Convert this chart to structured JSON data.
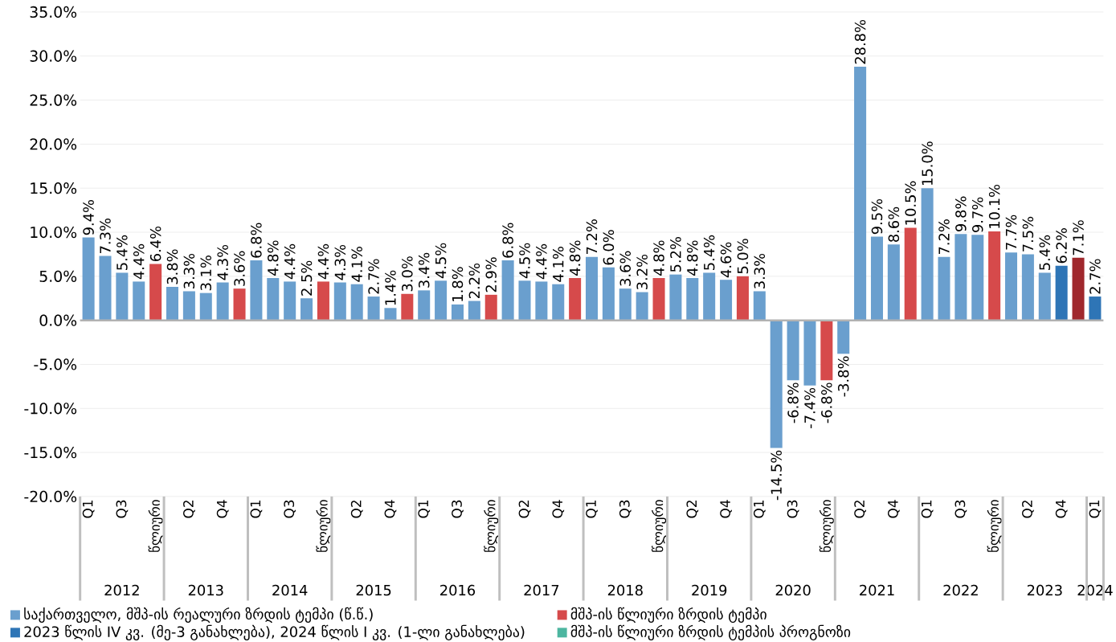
{
  "chart_data": {
    "type": "bar",
    "categories": [
      "Q1",
      null,
      "Q3",
      null,
      "წლიური",
      null,
      "Q2",
      null,
      "Q4",
      null,
      "Q1",
      null,
      "Q3",
      null,
      "წლიური",
      null,
      "Q2",
      null,
      "Q4",
      null,
      "Q1",
      null,
      "Q3",
      null,
      "წლიური",
      null,
      "Q2",
      null,
      "Q4",
      null,
      "Q1",
      null,
      "Q3",
      null,
      "წლიური",
      null,
      "Q2",
      null,
      "Q4",
      null,
      "Q1",
      null,
      "Q3",
      null,
      "წლიური",
      null,
      "Q2",
      null,
      "Q4",
      null,
      "Q1",
      null,
      "Q3",
      null,
      "წლიური",
      null,
      "Q2",
      null,
      "Q4",
      null,
      "Q1"
    ],
    "annotations": [
      "2012",
      "2013",
      "2014",
      "2015",
      "2016",
      "2017",
      "2018",
      "2019",
      "2020",
      "2021",
      "2022",
      "2023",
      "2024"
    ],
    "series": [
      {
        "name": "საქართველო, მშპ-ის რეალური ზრდის ტემპი (წ.წ.)",
        "color": "#6a9fce",
        "values": [
          9.4,
          7.3,
          5.4,
          4.4,
          null,
          3.8,
          3.3,
          3.1,
          4.3,
          null,
          6.8,
          4.8,
          4.4,
          2.5,
          null,
          4.3,
          4.1,
          2.7,
          1.4,
          null,
          3.4,
          4.5,
          1.8,
          2.2,
          null,
          6.8,
          4.5,
          4.4,
          4.1,
          null,
          7.2,
          6.0,
          3.6,
          3.2,
          null,
          5.2,
          4.8,
          5.4,
          4.6,
          null,
          3.3,
          -14.5,
          -6.8,
          -7.4,
          null,
          -3.8,
          28.8,
          9.5,
          8.6,
          null,
          15.0,
          7.2,
          9.8,
          9.7,
          null,
          7.7,
          7.5,
          5.4,
          null,
          null,
          null
        ],
        "value_labels": [
          "9.4%",
          "7.3%",
          "5.4%",
          "4.4%",
          null,
          "3.8%",
          "3.3%",
          "3.1%",
          "4.3%",
          null,
          "6.8%",
          "4.8%",
          "4.4%",
          "2.5%",
          null,
          "4.3%",
          "4.1%",
          "2.7%",
          "1.4%",
          null,
          "3.4%",
          "4.5%",
          "1.8%",
          "2.2%",
          null,
          "6.8%",
          "4.5%",
          "4.4%",
          "4.1%",
          null,
          "7.2%",
          "6.0%",
          "3.6%",
          "3.2%",
          null,
          "5.2%",
          "4.8%",
          "5.4%",
          "4.6%",
          null,
          "3.3%",
          "-14.5%",
          "-6.8%",
          "-7.4%",
          null,
          "-3.8%",
          "28.8%",
          "9.5%",
          "8.6%",
          null,
          "15.0%",
          "7.2%",
          "9.8%",
          "9.7%",
          null,
          "7.7%",
          "7.5%",
          "5.4%",
          null,
          null,
          null
        ]
      },
      {
        "name": "მშპ-ის წლიური ზრდის ტემპი",
        "color": "#d64a4b",
        "values": [
          null,
          null,
          null,
          null,
          6.4,
          null,
          null,
          null,
          null,
          3.6,
          null,
          null,
          null,
          null,
          4.4,
          null,
          null,
          null,
          null,
          3.0,
          null,
          null,
          null,
          null,
          2.9,
          null,
          null,
          null,
          null,
          4.8,
          null,
          null,
          null,
          null,
          4.8,
          null,
          null,
          null,
          null,
          5.0,
          null,
          null,
          null,
          null,
          -6.8,
          null,
          null,
          null,
          null,
          10.5,
          null,
          null,
          null,
          null,
          10.1,
          null,
          null,
          null,
          null,
          null,
          null
        ],
        "value_labels": [
          null,
          null,
          null,
          null,
          "6.4%",
          null,
          null,
          null,
          null,
          "3.6%",
          null,
          null,
          null,
          null,
          "4.4%",
          null,
          null,
          null,
          null,
          "3.0%",
          null,
          null,
          null,
          null,
          "2.9%",
          null,
          null,
          null,
          null,
          "4.8%",
          null,
          null,
          null,
          null,
          "4.8%",
          null,
          null,
          null,
          null,
          "5.0%",
          null,
          null,
          null,
          null,
          "-6.8%",
          null,
          null,
          null,
          null,
          "10.5%",
          null,
          null,
          null,
          null,
          "10.1%",
          null,
          null,
          null,
          null,
          null,
          null
        ]
      },
      {
        "name": "2023 წლის IV კვ. (მე-3 განახლება), 2024 წლის I კვ. (1-ლი განახლება)",
        "color": "#2e75b6",
        "colors": [
          "#2e75b6",
          "#2e75b6",
          "#2e75b6",
          "#2e75b6",
          "#2e75b6",
          "#2e75b6",
          "#2e75b6",
          "#2e75b6",
          "#2e75b6",
          "#2e75b6",
          "#2e75b6",
          "#2e75b6",
          "#2e75b6",
          "#2e75b6",
          "#2e75b6",
          "#2e75b6",
          "#2e75b6",
          "#2e75b6",
          "#2e75b6",
          "#2e75b6",
          "#2e75b6",
          "#2e75b6",
          "#2e75b6",
          "#2e75b6",
          "#2e75b6",
          "#2e75b6",
          "#2e75b6",
          "#2e75b6",
          "#2e75b6",
          "#2e75b6",
          "#2e75b6",
          "#2e75b6",
          "#2e75b6",
          "#2e75b6",
          "#2e75b6",
          "#2e75b6",
          "#2e75b6",
          "#2e75b6",
          "#2e75b6",
          "#2e75b6",
          "#2e75b6",
          "#2e75b6",
          "#2e75b6",
          "#2e75b6",
          "#2e75b6",
          "#2e75b6",
          "#2e75b6",
          "#2e75b6",
          "#2e75b6",
          "#2e75b6",
          "#2e75b6",
          "#2e75b6",
          "#2e75b6",
          "#2e75b6",
          "#2e75b6",
          "#2e75b6",
          "#2e75b6",
          "#2e75b6",
          "#2e75b6",
          "#a0282d",
          "#2e75b6"
        ],
        "values": [
          null,
          null,
          null,
          null,
          null,
          null,
          null,
          null,
          null,
          null,
          null,
          null,
          null,
          null,
          null,
          null,
          null,
          null,
          null,
          null,
          null,
          null,
          null,
          null,
          null,
          null,
          null,
          null,
          null,
          null,
          null,
          null,
          null,
          null,
          null,
          null,
          null,
          null,
          null,
          null,
          null,
          null,
          null,
          null,
          null,
          null,
          null,
          null,
          null,
          null,
          null,
          null,
          null,
          null,
          null,
          null,
          null,
          null,
          6.2,
          7.1,
          2.7
        ],
        "value_labels": [
          null,
          null,
          null,
          null,
          null,
          null,
          null,
          null,
          null,
          null,
          null,
          null,
          null,
          null,
          null,
          null,
          null,
          null,
          null,
          null,
          null,
          null,
          null,
          null,
          null,
          null,
          null,
          null,
          null,
          null,
          null,
          null,
          null,
          null,
          null,
          null,
          null,
          null,
          null,
          null,
          null,
          null,
          null,
          null,
          null,
          null,
          null,
          null,
          null,
          null,
          null,
          null,
          null,
          null,
          null,
          null,
          null,
          null,
          "6.2%",
          "7.1%",
          "2.7%"
        ]
      },
      {
        "name": "მშპ-ის წლიური ზრდის ტემპის პროგნოზი",
        "color": "#4db6a0",
        "values": [
          null,
          null,
          null,
          null,
          null,
          null,
          null,
          null,
          null,
          null,
          null,
          null,
          null,
          null,
          null,
          null,
          null,
          null,
          null,
          null,
          null,
          null,
          null,
          null,
          null,
          null,
          null,
          null,
          null,
          null,
          null,
          null,
          null,
          null,
          null,
          null,
          null,
          null,
          null,
          null,
          null,
          null,
          null,
          null,
          null,
          null,
          null,
          null,
          null,
          null,
          null,
          null,
          null,
          null,
          null,
          null,
          null,
          null,
          null,
          null,
          null
        ]
      }
    ],
    "ylim": [
      -20,
      35
    ],
    "yticks": [
      {
        "value": -20,
        "label": "-20.0%"
      },
      {
        "value": -15,
        "label": "-15.0%"
      },
      {
        "value": -10,
        "label": "-10.0%"
      },
      {
        "value": -5,
        "label": "-5.0%"
      },
      {
        "value": 0,
        "label": "0.0%"
      },
      {
        "value": 5,
        "label": "5.0%"
      },
      {
        "value": 10,
        "label": "10.0%"
      },
      {
        "value": 15,
        "label": "15.0%"
      },
      {
        "value": 20,
        "label": "20.0%"
      },
      {
        "value": 25,
        "label": "25.0%"
      },
      {
        "value": 30,
        "label": "30.0%"
      },
      {
        "value": 35,
        "label": "35.0%"
      }
    ],
    "grid": "y",
    "legend": "bottom"
  }
}
